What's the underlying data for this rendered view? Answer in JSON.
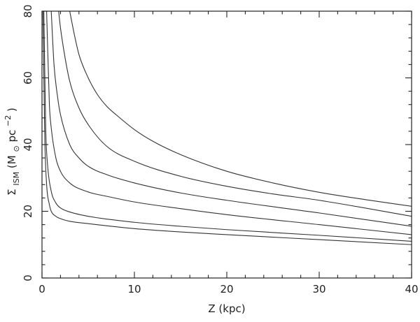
{
  "chart_data": {
    "type": "line",
    "title": "",
    "xlabel": "Z (kpc)",
    "ylabel": {
      "base": "Σ",
      "sub": "ISM",
      "unit_open": " (M",
      "sun_symbol": "⊙",
      "unit_mid": "pc",
      "sup": "−2",
      "unit_close": ")"
    },
    "xlim": [
      0,
      40
    ],
    "ylim": [
      0,
      80
    ],
    "x_major_ticks": [
      0,
      10,
      20,
      30,
      40
    ],
    "y_major_ticks": [
      0,
      20,
      40,
      60,
      80
    ],
    "x_tick_labels": [
      "0",
      "10",
      "20",
      "30",
      "40"
    ],
    "y_tick_labels": [
      "0",
      "20",
      "40",
      "60",
      "80"
    ],
    "x_minor_step": 2,
    "y_minor_step": 4,
    "grid": false,
    "legend": "none",
    "series": [
      {
        "x": [
          0.1,
          0.3,
          0.5,
          0.8,
          1,
          1.5,
          2,
          3,
          5,
          10,
          15,
          20,
          30,
          40
        ],
        "y": [
          80,
          42,
          28,
          22,
          20,
          18.5,
          17.8,
          17,
          16.3,
          14.8,
          13.8,
          13,
          11.5,
          10
        ]
      },
      {
        "x": [
          0.2,
          0.4,
          0.6,
          1,
          1.5,
          2,
          3,
          5,
          10,
          15,
          20,
          30,
          40
        ],
        "y": [
          80,
          45,
          34,
          26,
          22.5,
          21,
          19.8,
          18.5,
          16.7,
          15.5,
          14.5,
          12.8,
          11
        ]
      },
      {
        "x": [
          0.5,
          0.8,
          1,
          1.5,
          2,
          3,
          5,
          7,
          10,
          15,
          20,
          30,
          40
        ],
        "y": [
          80,
          52,
          45,
          36,
          32,
          28.5,
          25.8,
          24.5,
          22.8,
          20.8,
          19,
          16,
          13
        ]
      },
      {
        "x": [
          1,
          1.3,
          1.7,
          2,
          3,
          4,
          5,
          7,
          10,
          15,
          20,
          30,
          40
        ],
        "y": [
          80,
          64,
          54,
          49,
          40,
          36,
          33.5,
          31,
          28.5,
          25.5,
          23.3,
          19.5,
          15.5
        ]
      },
      {
        "x": [
          1.8,
          2,
          2.5,
          3,
          4,
          5,
          7,
          10,
          15,
          20,
          25,
          30,
          40
        ],
        "y": [
          80,
          75,
          66,
          59,
          51,
          46,
          39.5,
          35,
          30.5,
          27.5,
          25.2,
          23.3,
          18.5
        ]
      },
      {
        "x": [
          3,
          3.5,
          4,
          5,
          6,
          7,
          8,
          10,
          12,
          15,
          20,
          25,
          30,
          35,
          40
        ],
        "y": [
          80,
          73,
          67,
          60,
          55,
          51.5,
          49,
          44.5,
          41,
          37,
          32,
          28.5,
          25.7,
          23.5,
          21.5
        ]
      }
    ]
  }
}
